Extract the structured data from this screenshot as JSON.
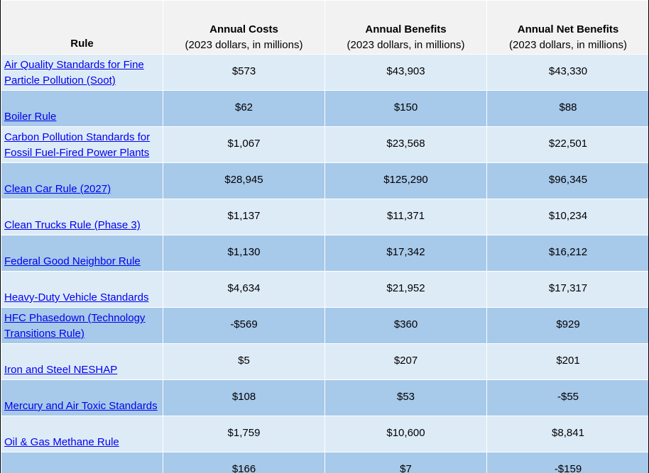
{
  "table": {
    "headers": [
      {
        "title": "Rule",
        "sub": ""
      },
      {
        "title": "Annual Costs",
        "sub": "(2023 dollars, in millions)"
      },
      {
        "title": "Annual Benefits",
        "sub": "(2023 dollars, in millions)"
      },
      {
        "title": "Annual Net Benefits",
        "sub": "(2023 dollars, in millions)"
      }
    ],
    "rows": [
      {
        "rule": "Air Quality Standards for Fine Particle Pollution (Soot)",
        "costs": "$573",
        "benefits": "$43,903",
        "net": "$43,330"
      },
      {
        "rule": "Boiler Rule",
        "costs": "$62",
        "benefits": "$150",
        "net": "$88"
      },
      {
        "rule": "Carbon Pollution Standards for Fossil Fuel-Fired Power Plants",
        "costs": "$1,067",
        "benefits": "$23,568",
        "net": "$22,501"
      },
      {
        "rule": "Clean Car Rule (2027)",
        "costs": "$28,945",
        "benefits": "$125,290",
        "net": "$96,345"
      },
      {
        "rule": "Clean Trucks Rule (Phase 3)",
        "costs": "$1,137",
        "benefits": "$11,371",
        "net": "$10,234"
      },
      {
        "rule": "Federal Good Neighbor Rule",
        "costs": "$1,130",
        "benefits": "$17,342",
        "net": "$16,212"
      },
      {
        "rule": "Heavy-Duty Vehicle Standards",
        "costs": "$4,634",
        "benefits": "$21,952",
        "net": "$17,317"
      },
      {
        "rule": "HFC Phasedown (Technology Transitions Rule)",
        "costs": "-$569",
        "benefits": "$360",
        "net": "$929"
      },
      {
        "rule": "Iron and Steel NESHAP",
        "costs": "$5",
        "benefits": "$207",
        "net": "$201"
      },
      {
        "rule": "Mercury and Air Toxic Standards",
        "costs": "$108",
        "benefits": "$53",
        "net": "-$55"
      },
      {
        "rule": "Oil & Gas Methane Rule",
        "costs": "$1,759",
        "benefits": "$10,600",
        "net": "$8,841"
      },
      {
        "rule": "",
        "costs": "$166",
        "benefits": "$7",
        "net": "-$159"
      }
    ]
  },
  "colors": {
    "header_bg": "#f2f2f2",
    "row_light": "#ddebf7",
    "row_dark": "#a7c9ea",
    "link": "#0000ee"
  }
}
